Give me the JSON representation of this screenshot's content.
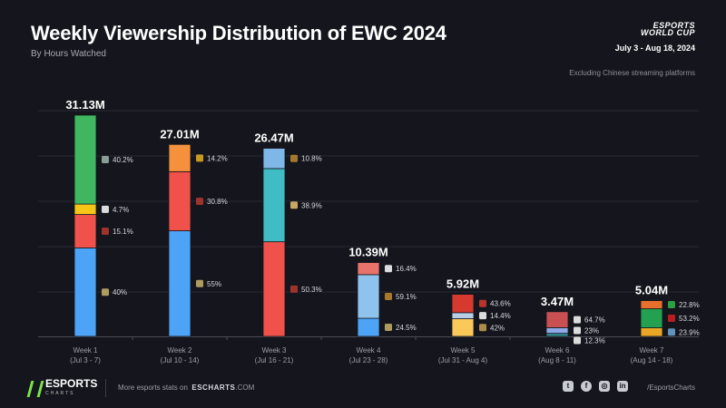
{
  "header": {
    "title": "Weekly Viewership Distribution of EWC 2024",
    "subtitle": "By Hours Watched",
    "brand_logo": "ESPORTS WORLD CUP",
    "dates": "July 3 - Aug 18, 2024",
    "note": "Excluding Chinese streaming platforms"
  },
  "chart_data": {
    "type": "bar",
    "stacked": true,
    "title": "Weekly Viewership Distribution of EWC 2024",
    "subtitle": "By Hours Watched",
    "grid": true,
    "categories": [
      {
        "week": "Week 1",
        "range": "(Jul 3 - 7)"
      },
      {
        "week": "Week 2",
        "range": "(Jul 10 - 14)"
      },
      {
        "week": "Week 3",
        "range": "(Jul 16 - 21)"
      },
      {
        "week": "Week 4",
        "range": "(Jul 23 - 28)"
      },
      {
        "week": "Week 5",
        "range": "(Jul 31 - Aug 4)"
      },
      {
        "week": "Week 6",
        "range": "(Aug 8 - 11)"
      },
      {
        "week": "Week 7",
        "range": "(Aug 14 - 18)"
      }
    ],
    "totals": [
      31.13,
      27.01,
      26.47,
      10.39,
      5.92,
      3.47,
      5.04
    ],
    "total_labels": [
      "31.13M",
      "27.01M",
      "26.47M",
      "10.39M",
      "5.92M",
      "3.47M",
      "5.04M"
    ],
    "unit": "M hours watched",
    "segments": [
      [
        {
          "pct": 40,
          "label": "40%",
          "color": "#4da3f5",
          "icon": "mlbb-icon",
          "icon_color": "#c9b46a"
        },
        {
          "pct": 15.1,
          "label": "15.1%",
          "color": "#f0514a",
          "icon": "dota2-icon",
          "icon_color": "#b8372f"
        },
        {
          "pct": 4.7,
          "label": "4.7%",
          "color": "#f5c518",
          "icon": "warzone-icon",
          "icon_color": "#ffffff"
        },
        {
          "pct": 40.2,
          "label": "40.2%",
          "color": "#3fb65f",
          "icon": "league-of-legends-icon",
          "icon_color": "#9fb5a8"
        }
      ],
      [
        {
          "pct": 55,
          "label": "55%",
          "color": "#4da3f5",
          "icon": "mlbb-icon",
          "icon_color": "#c9b46a"
        },
        {
          "pct": 30.8,
          "label": "30.8%",
          "color": "#f0514a",
          "icon": "dota2-icon",
          "icon_color": "#b8372f"
        },
        {
          "pct": 14.2,
          "label": "14.2%",
          "color": "#f5903d",
          "icon": "pubg-mobile-icon",
          "icon_color": "#e8b020"
        }
      ],
      [
        {
          "pct": 50.3,
          "label": "50.3%",
          "color": "#f0514a",
          "icon": "dota2-icon",
          "icon_color": "#b8372f"
        },
        {
          "pct": 38.9,
          "label": "38.9%",
          "color": "#3fbcc4",
          "icon": "free-fire-icon",
          "icon_color": "#e8c070"
        },
        {
          "pct": 10.8,
          "label": "10.8%",
          "color": "#7fb8e8",
          "icon": "pubg-icon",
          "icon_color": "#c08a30"
        }
      ],
      [
        {
          "pct": 24.5,
          "label": "24.5%",
          "color": "#4da3f5",
          "icon": "mlbb-icon",
          "icon_color": "#c9b46a"
        },
        {
          "pct": 59.1,
          "label": "59.1%",
          "color": "#8ec3ee",
          "icon": "pubg-icon",
          "icon_color": "#c08a30"
        },
        {
          "pct": 16.4,
          "label": "16.4%",
          "color": "#e8736b",
          "icon": "overwatch-icon",
          "icon_color": "#ffffff"
        }
      ],
      [
        {
          "pct": 42,
          "label": "42%",
          "color": "#fbc95a",
          "icon": "honor-of-kings-icon",
          "icon_color": "#c9a050"
        },
        {
          "pct": 14.4,
          "label": "14.4%",
          "color": "#b8cde6",
          "icon": "ea-fc-icon",
          "icon_color": "#ffffff"
        },
        {
          "pct": 43.6,
          "label": "43.6%",
          "color": "#d63a2f",
          "icon": "apex-legends-icon",
          "icon_color": "#d63a2f"
        }
      ],
      [
        {
          "pct": 12.3,
          "label": "12.3%",
          "color": "#2e8a8f",
          "icon": "tekken-icon",
          "icon_color": "#ffffff"
        },
        {
          "pct": 23,
          "label": "23%",
          "color": "#8fa8e6",
          "icon": "fortnite-icon",
          "icon_color": "#ffffff"
        },
        {
          "pct": 64.7,
          "label": "64.7%",
          "color": "#c85050",
          "icon": "rainbow-six-icon",
          "icon_color": "#ffffff"
        }
      ],
      [
        {
          "pct": 23.9,
          "label": "23.9%",
          "color": "#e8a825",
          "icon": "street-fighter-icon",
          "icon_color": "#6fa8d8"
        },
        {
          "pct": 53.2,
          "label": "53.2%",
          "color": "#23a050",
          "icon": "teamfight-tactics-icon",
          "icon_color": "#d32020"
        },
        {
          "pct": 22.8,
          "label": "22.8%",
          "color": "#e86f2c",
          "icon": "rocket-league-icon",
          "icon_color": "#2eb84a"
        }
      ]
    ]
  },
  "footer": {
    "logo_main": "ESPORTS",
    "logo_sub": "CHARTS",
    "more_text": "More esports stats on",
    "site_bold": "ESCHARTS",
    "site_rest": ".COM",
    "social_icons": [
      "twitter-icon",
      "facebook-icon",
      "instagram-icon",
      "linkedin-icon"
    ],
    "handle": "/EsportsCharts"
  }
}
